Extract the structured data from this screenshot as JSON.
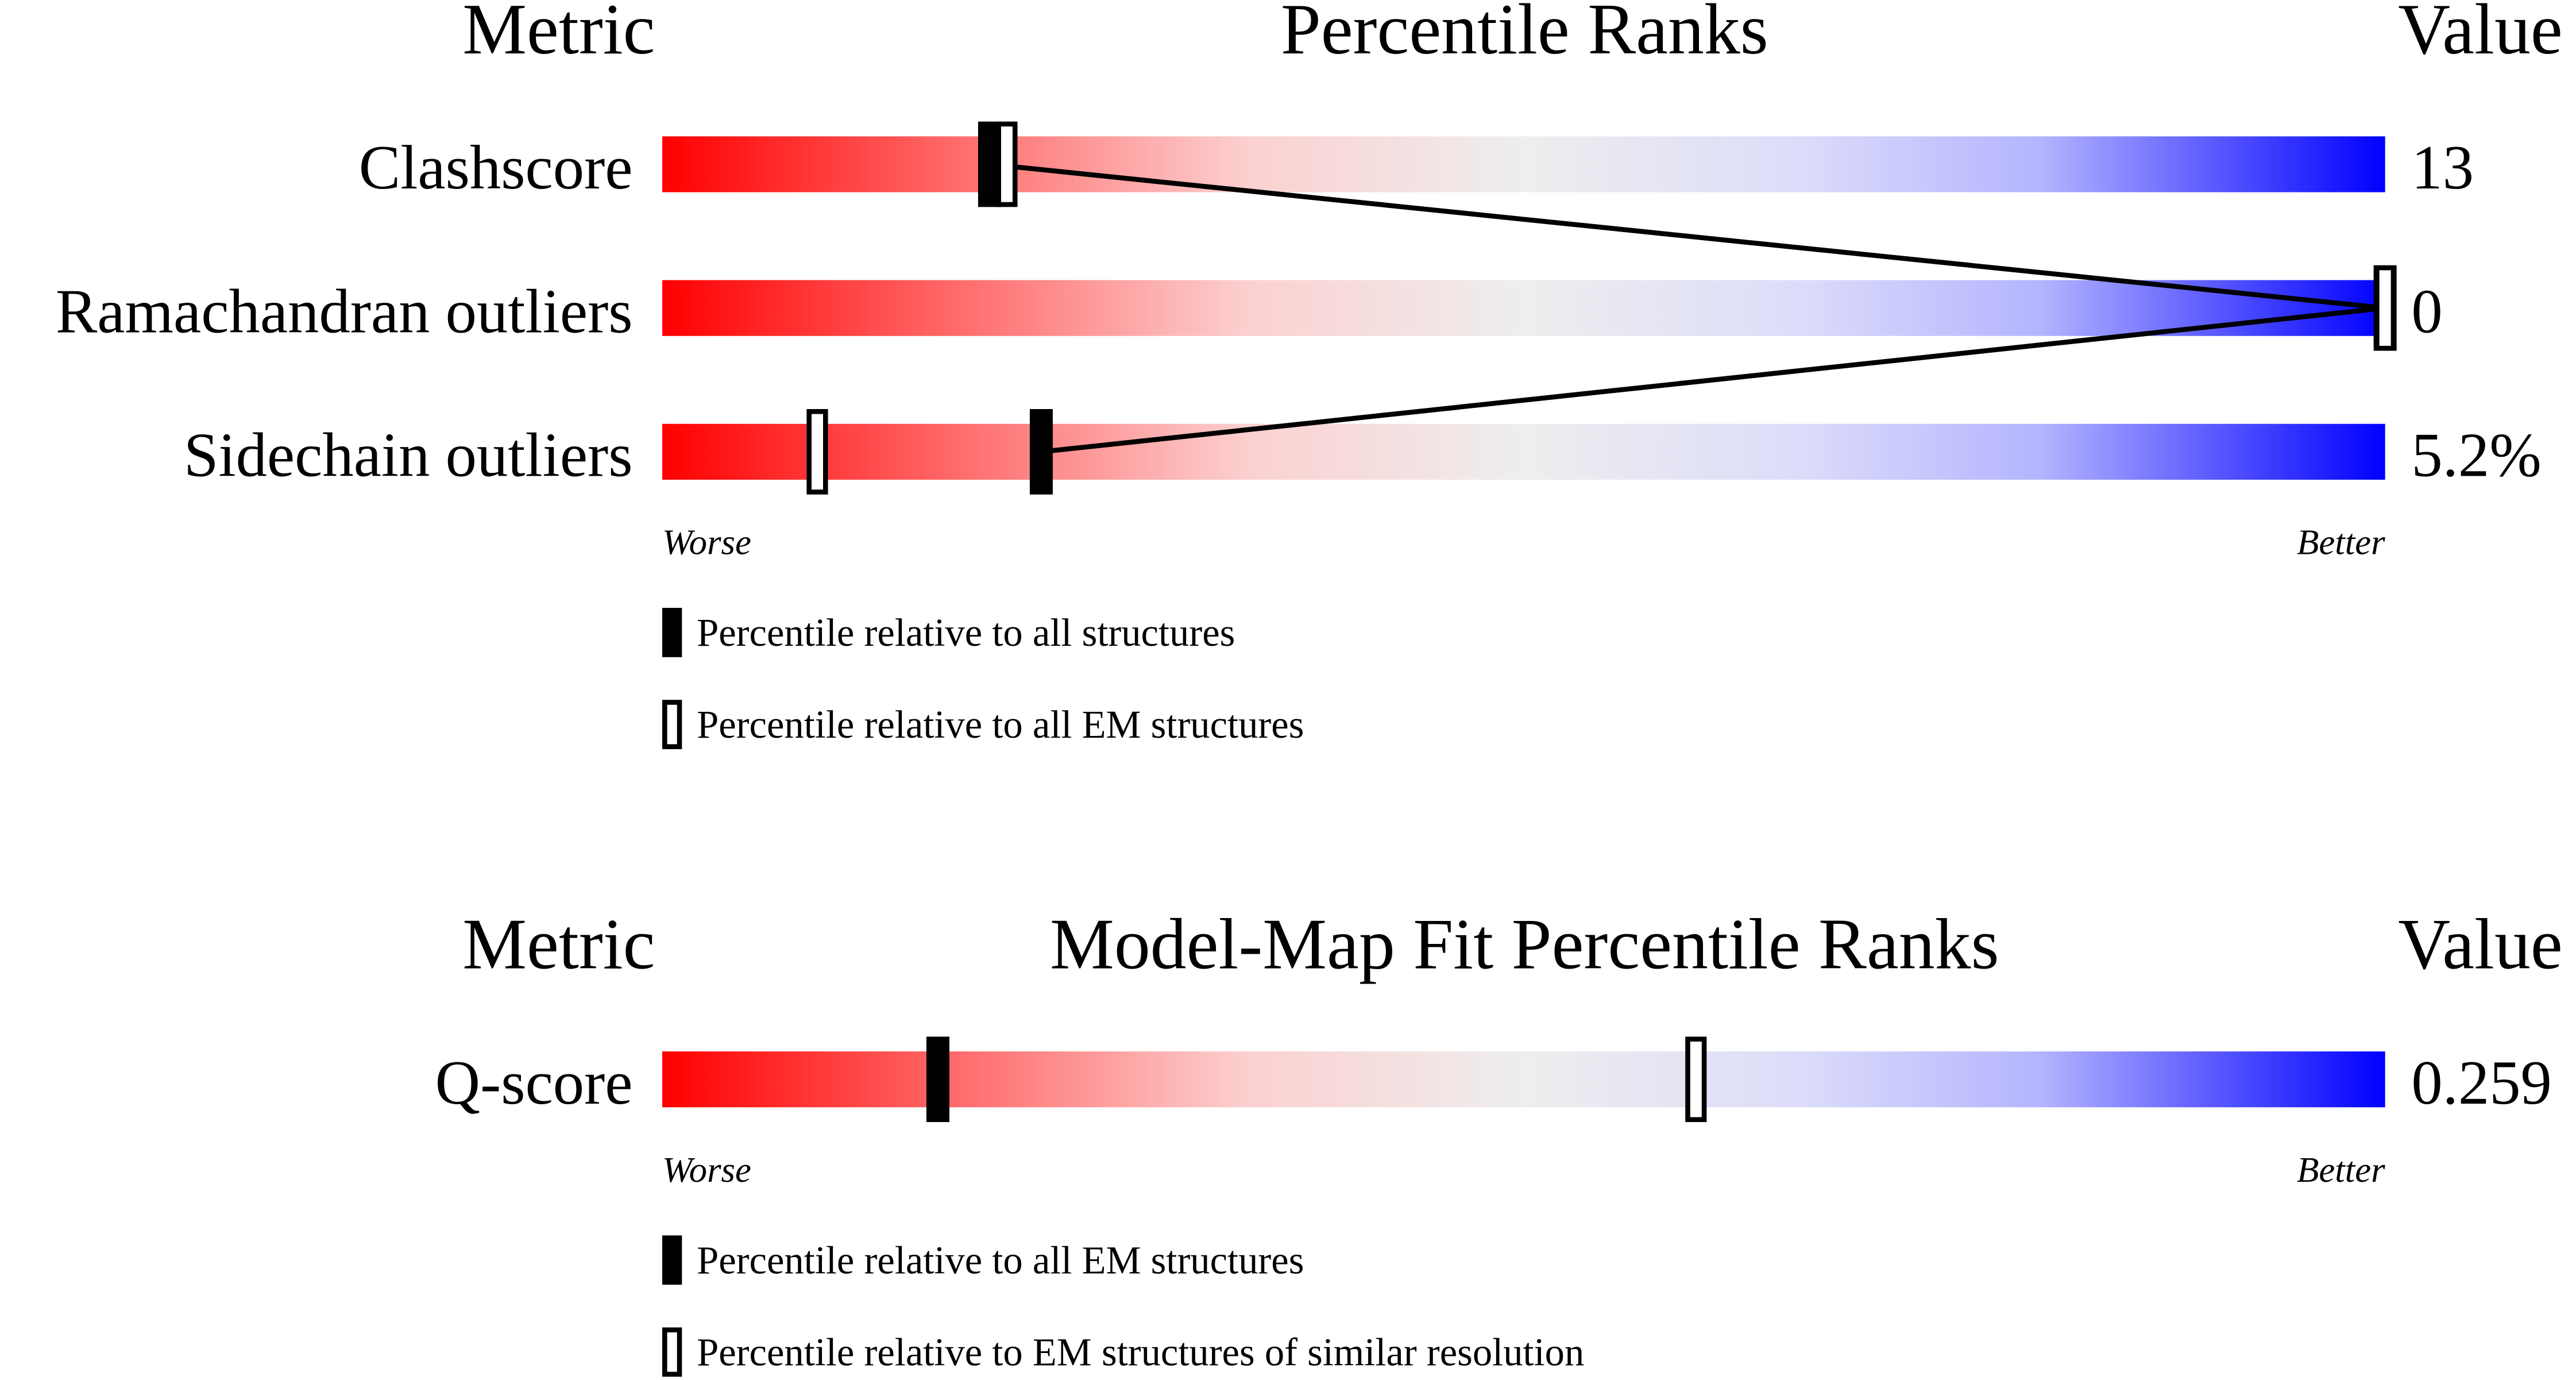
{
  "chart_data": [
    {
      "type": "slider",
      "metric_header": "Metric",
      "title": "Percentile Ranks",
      "value_header": "Value",
      "categories": [
        "Clashscore",
        "Ramachandran outliers",
        "Sidechain outliers"
      ],
      "metric_values": [
        "13",
        "0",
        "5.2%"
      ],
      "xlim": [
        0,
        100
      ],
      "worse_label": "Worse",
      "better_label": "Better",
      "series": [
        {
          "name": "Percentile relative to all structures",
          "style": "filled",
          "color": "#000000",
          "values": [
            19,
            100,
            22
          ]
        },
        {
          "name": "Percentile relative to all EM structures",
          "style": "hollow",
          "color": "#000000",
          "values": [
            20,
            100,
            9
          ]
        }
      ]
    },
    {
      "type": "slider",
      "metric_header": "Metric",
      "title": "Model-Map Fit Percentile Ranks",
      "value_header": "Value",
      "categories": [
        "Q-score"
      ],
      "metric_values": [
        "0.259"
      ],
      "xlim": [
        0,
        100
      ],
      "worse_label": "Worse",
      "better_label": "Better",
      "series": [
        {
          "name": "Percentile relative to all EM structures",
          "style": "filled",
          "color": "#000000",
          "values": [
            16
          ]
        },
        {
          "name": "Percentile relative to EM structures of similar resolution",
          "style": "hollow",
          "color": "#000000",
          "values": [
            60
          ]
        }
      ]
    }
  ]
}
